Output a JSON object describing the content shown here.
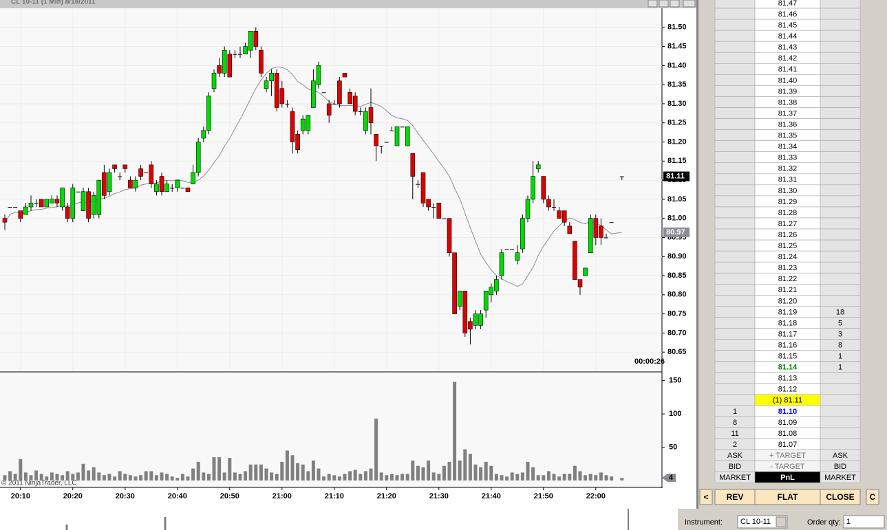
{
  "window_title": "CL 10-11 (1 Min)  8/18/2011",
  "chart_data": {
    "type": "candlestick",
    "x": [
      "20:07",
      "20:08",
      "20:09",
      "20:10",
      "20:11",
      "20:12",
      "20:13",
      "20:14",
      "20:15",
      "20:16",
      "20:17",
      "20:18",
      "20:19",
      "20:20",
      "20:21",
      "20:22",
      "20:23",
      "20:24",
      "20:25",
      "20:26",
      "20:27",
      "20:28",
      "20:29",
      "20:30",
      "20:31",
      "20:32",
      "20:33",
      "20:34",
      "20:35",
      "20:36",
      "20:37",
      "20:38",
      "20:39",
      "20:40",
      "20:41",
      "20:42",
      "20:43",
      "20:44",
      "20:45",
      "20:46",
      "20:47",
      "20:48",
      "20:49",
      "20:50",
      "20:51",
      "20:52",
      "20:53",
      "20:54",
      "20:55",
      "20:56",
      "20:57",
      "20:58",
      "20:59",
      "21:00",
      "21:01",
      "21:02",
      "21:03",
      "21:04",
      "21:05",
      "21:06",
      "21:07",
      "21:08",
      "21:09",
      "21:10",
      "21:11",
      "21:12",
      "21:13",
      "21:14",
      "21:15",
      "21:16",
      "21:17",
      "21:18",
      "21:19",
      "21:20",
      "21:21",
      "21:22",
      "21:23",
      "21:24",
      "21:25",
      "21:26",
      "21:27",
      "21:28",
      "21:29",
      "21:30",
      "21:31",
      "21:32",
      "21:33",
      "21:34",
      "21:35",
      "21:36",
      "21:37",
      "21:38",
      "21:39",
      "21:40",
      "21:41",
      "21:42",
      "21:43",
      "21:44",
      "21:45",
      "21:46",
      "21:47",
      "21:48",
      "21:49",
      "21:50",
      "21:51",
      "21:52",
      "21:53",
      "21:54",
      "21:55",
      "21:56",
      "21:57",
      "21:58",
      "21:59",
      "22:00",
      "22:01",
      "22:02",
      "22:03",
      "22:05"
    ],
    "open": [
      81.0,
      81.03,
      81.03,
      81.02,
      81.01,
      81.03,
      81.04,
      81.05,
      81.03,
      81.04,
      81.05,
      81.03,
      81.03,
      81.0,
      81.07,
      81.02,
      81.07,
      81.01,
      81.01,
      81.12,
      81.07,
      81.14,
      81.11,
      81.14,
      81.1,
      81.08,
      81.13,
      81.12,
      81.14,
      81.07,
      81.11,
      81.07,
      81.08,
      81.08,
      81.08,
      81.08,
      81.09,
      81.12,
      81.21,
      81.23,
      81.34,
      81.4,
      81.38,
      81.43,
      81.43,
      81.43,
      81.43,
      81.44,
      81.49,
      81.44,
      81.34,
      81.36,
      81.38,
      81.34,
      81.3,
      81.28,
      81.22,
      81.23,
      81.23,
      81.29,
      81.35,
      81.33,
      81.3,
      81.3,
      81.36,
      81.38,
      81.33,
      81.32,
      81.28,
      81.23,
      81.29,
      81.22,
      81.19,
      81.2,
      81.23,
      81.19,
      81.24,
      81.19,
      81.17,
      81.09,
      81.12,
      81.05,
      81.03,
      81.04,
      81.0,
      81.0,
      80.91,
      80.77,
      80.81,
      80.73,
      80.72,
      80.72,
      80.76,
      80.8,
      80.81,
      80.85,
      80.92,
      80.92,
      80.89,
      80.92,
      81.0,
      81.05,
      81.13,
      81.11,
      81.05,
      81.03,
      81.02,
      81.02,
      80.98,
      80.94,
      80.84,
      80.85,
      80.91,
      81.0,
      80.98,
      80.95,
      80.99,
      81.11
    ],
    "high": [
      81.01,
      81.03,
      81.03,
      81.02,
      81.04,
      81.06,
      81.05,
      81.05,
      81.05,
      81.06,
      81.06,
      81.08,
      81.04,
      81.09,
      81.07,
      81.08,
      81.08,
      81.07,
      81.1,
      81.14,
      81.13,
      81.14,
      81.12,
      81.14,
      81.11,
      81.11,
      81.14,
      81.12,
      81.15,
      81.1,
      81.12,
      81.1,
      81.09,
      81.1,
      81.08,
      81.08,
      81.14,
      81.21,
      81.24,
      81.33,
      81.39,
      81.42,
      81.45,
      81.44,
      81.44,
      81.45,
      81.46,
      81.49,
      81.5,
      81.45,
      81.37,
      81.39,
      81.39,
      81.36,
      81.31,
      81.29,
      81.23,
      81.27,
      81.27,
      81.39,
      81.41,
      81.33,
      81.31,
      81.31,
      81.37,
      81.38,
      81.34,
      81.33,
      81.29,
      81.29,
      81.34,
      81.22,
      81.19,
      81.2,
      81.24,
      81.24,
      81.24,
      81.24,
      81.17,
      81.1,
      81.12,
      81.05,
      81.04,
      81.04,
      81.0,
      81.0,
      80.91,
      80.81,
      80.81,
      80.74,
      80.76,
      80.76,
      80.81,
      80.83,
      80.85,
      80.92,
      80.92,
      80.92,
      80.93,
      81.01,
      81.06,
      81.15,
      81.15,
      81.11,
      81.06,
      81.05,
      81.03,
      81.02,
      80.99,
      80.94,
      80.84,
      80.87,
      81.01,
      81.01,
      81.0,
      80.96,
      80.99,
      81.11
    ],
    "low": [
      80.97,
      81.03,
      81.03,
      80.99,
      81.01,
      81.02,
      81.03,
      81.03,
      81.03,
      81.04,
      81.03,
      81.02,
      80.99,
      80.99,
      81.07,
      81.02,
      80.99,
      81.0,
      81.0,
      81.05,
      81.06,
      81.12,
      81.1,
      81.12,
      81.08,
      81.07,
      81.1,
      81.12,
      81.08,
      81.06,
      81.06,
      81.07,
      81.07,
      81.07,
      81.08,
      81.07,
      81.09,
      81.11,
      81.2,
      81.22,
      81.33,
      81.37,
      81.37,
      81.37,
      81.42,
      81.42,
      81.43,
      81.42,
      81.44,
      81.37,
      81.33,
      81.32,
      81.28,
      81.29,
      81.29,
      81.17,
      81.17,
      81.22,
      81.22,
      81.29,
      81.34,
      81.33,
      81.25,
      81.3,
      81.29,
      81.37,
      81.3,
      81.27,
      81.27,
      81.22,
      81.22,
      81.15,
      81.17,
      81.2,
      81.23,
      81.19,
      81.24,
      81.19,
      81.05,
      81.08,
      81.03,
      81.02,
      81.0,
      81.0,
      81.0,
      80.9,
      80.75,
      80.76,
      80.69,
      80.67,
      80.71,
      80.71,
      80.74,
      80.78,
      80.8,
      80.84,
      80.92,
      80.92,
      80.88,
      80.91,
      80.99,
      81.04,
      81.12,
      81.04,
      81.02,
      81.02,
      81.0,
      80.98,
      80.96,
      80.84,
      80.8,
      80.85,
      80.91,
      80.93,
      80.93,
      80.95,
      80.99,
      81.1
    ],
    "close": [
      80.99,
      81.03,
      81.03,
      81.0,
      81.03,
      81.04,
      81.04,
      81.03,
      81.05,
      81.05,
      81.04,
      81.08,
      81.0,
      81.08,
      81.07,
      81.07,
      81.0,
      81.06,
      81.1,
      81.06,
      81.12,
      81.13,
      81.11,
      81.13,
      81.08,
      81.1,
      81.11,
      81.12,
      81.09,
      81.09,
      81.07,
      81.09,
      81.08,
      81.1,
      81.08,
      81.07,
      81.12,
      81.2,
      81.23,
      81.32,
      81.38,
      81.38,
      81.44,
      81.37,
      81.43,
      81.43,
      81.45,
      81.49,
      81.45,
      81.38,
      81.36,
      81.38,
      81.29,
      81.3,
      81.3,
      81.2,
      81.18,
      81.26,
      81.27,
      81.36,
      81.4,
      81.33,
      81.27,
      81.3,
      81.3,
      81.37,
      81.3,
      81.28,
      81.28,
      81.28,
      81.25,
      81.19,
      81.19,
      81.2,
      81.23,
      81.24,
      81.24,
      81.24,
      81.11,
      81.09,
      81.04,
      81.03,
      81.03,
      81.0,
      81.0,
      80.91,
      80.75,
      80.81,
      80.7,
      80.71,
      80.75,
      80.75,
      80.81,
      80.82,
      80.84,
      80.91,
      80.92,
      80.92,
      80.91,
      81.0,
      81.05,
      81.11,
      81.14,
      81.05,
      81.03,
      81.03,
      81.0,
      80.99,
      80.96,
      80.84,
      80.82,
      80.87,
      81.0,
      80.95,
      80.95,
      80.95,
      80.99,
      81.11
    ],
    "up_color": "#00dc00",
    "down_color": "#e00000",
    "ylim": [
      80.6,
      81.55
    ],
    "yticks": [
      {
        "value": 81.5,
        "label": "81.50"
      },
      {
        "value": 81.45,
        "label": "81.45"
      },
      {
        "value": 81.4,
        "label": "81.40"
      },
      {
        "value": 81.35,
        "label": "81.35"
      },
      {
        "value": 81.3,
        "label": "81.30"
      },
      {
        "value": 81.25,
        "label": "81.25"
      },
      {
        "value": 81.2,
        "label": "81.20"
      },
      {
        "value": 81.15,
        "label": "81.15"
      },
      {
        "value": 81.1,
        "label": "81.10"
      },
      {
        "value": 81.05,
        "label": "81.05"
      },
      {
        "value": 81.0,
        "label": "81.00"
      },
      {
        "value": 80.95,
        "label": "80.95"
      },
      {
        "value": 80.9,
        "label": "80.90"
      },
      {
        "value": 80.85,
        "label": "80.85"
      },
      {
        "value": 80.8,
        "label": "80.80"
      },
      {
        "value": 80.75,
        "label": "80.75"
      },
      {
        "value": 80.7,
        "label": "80.70"
      },
      {
        "value": 80.65,
        "label": "80.65"
      }
    ],
    "xticks": [
      "20:10",
      "20:20",
      "20:30",
      "20:40",
      "20:50",
      "21:00",
      "21:10",
      "21:20",
      "21:30",
      "21:40",
      "21:50",
      "22:00"
    ],
    "grid": true,
    "ma_label": "80.97",
    "timer": "00:00:26",
    "copyright": "© 2011 NinjaTrader, LLC",
    "volume": {
      "type": "bar",
      "color": "#808080",
      "ylim": [
        0,
        160
      ],
      "yticks": [
        50,
        100,
        150
      ],
      "values": [
        8,
        14,
        10,
        32,
        12,
        8,
        15,
        10,
        6,
        12,
        10,
        8,
        14,
        10,
        12,
        25,
        15,
        20,
        12,
        8,
        10,
        6,
        14,
        10,
        8,
        6,
        8,
        14,
        14,
        8,
        12,
        10,
        6,
        4,
        10,
        6,
        18,
        28,
        12,
        10,
        35,
        35,
        12,
        34,
        12,
        10,
        14,
        24,
        24,
        24,
        18,
        12,
        10,
        28,
        45,
        38,
        26,
        24,
        14,
        30,
        18,
        6,
        10,
        8,
        6,
        10,
        14,
        16,
        10,
        14,
        18,
        93,
        12,
        8,
        10,
        8,
        10,
        10,
        30,
        22,
        20,
        30,
        12,
        10,
        22,
        28,
        148,
        30,
        47,
        40,
        24,
        20,
        28,
        22,
        10,
        8,
        6,
        12,
        10,
        12,
        28,
        20,
        8,
        8,
        14,
        10,
        6,
        10,
        10,
        22,
        14,
        8,
        10,
        8,
        12,
        8,
        6,
        4
      ]
    }
  },
  "ladder": {
    "rows": [
      {
        "price": "81.47"
      },
      {
        "price": "81.46"
      },
      {
        "price": "81.45"
      },
      {
        "price": "81.44"
      },
      {
        "price": "81.43"
      },
      {
        "price": "81.42"
      },
      {
        "price": "81.41"
      },
      {
        "price": "81.40"
      },
      {
        "price": "81.39"
      },
      {
        "price": "81.38"
      },
      {
        "price": "81.37"
      },
      {
        "price": "81.36"
      },
      {
        "price": "81.35"
      },
      {
        "price": "81.34"
      },
      {
        "price": "81.33"
      },
      {
        "price": "81.32"
      },
      {
        "price": "81.31"
      },
      {
        "price": "81.30"
      },
      {
        "price": "81.29"
      },
      {
        "price": "81.28"
      },
      {
        "price": "81.27"
      },
      {
        "price": "81.26"
      },
      {
        "price": "81.25"
      },
      {
        "price": "81.24"
      },
      {
        "price": "81.23"
      },
      {
        "price": "81.22"
      },
      {
        "price": "81.21"
      },
      {
        "price": "81.20"
      },
      {
        "price": "81.19",
        "ask": "18"
      },
      {
        "price": "81.18",
        "ask": "5"
      },
      {
        "price": "81.17",
        "ask": "3"
      },
      {
        "price": "81.16",
        "ask": "8"
      },
      {
        "price": "81.15",
        "ask": "1"
      },
      {
        "price": "81.14",
        "ask": "1"
      },
      {
        "price": "81.13"
      },
      {
        "price": "81.12"
      },
      {
        "price": "(1) 81.11"
      },
      {
        "price": "81.10",
        "bid": "1"
      },
      {
        "price": "81.09",
        "bid": "8"
      },
      {
        "price": "81.08",
        "bid": "11"
      },
      {
        "price": "81.07",
        "bid": "2"
      }
    ],
    "footer_rows": [
      [
        "ASK",
        "+ TARGET",
        "ASK"
      ],
      [
        "BID",
        "- TARGET",
        "BID"
      ],
      [
        "MARKET",
        "PnL",
        "MARKET"
      ]
    ],
    "buttons": [
      "<",
      "REV",
      "FLAT",
      "CLOSE",
      "C"
    ]
  },
  "toolbar": {
    "instrument_label": "Instrument:",
    "instrument": "CL 10-11",
    "qty_label": "Order qty:",
    "qty": "1"
  }
}
